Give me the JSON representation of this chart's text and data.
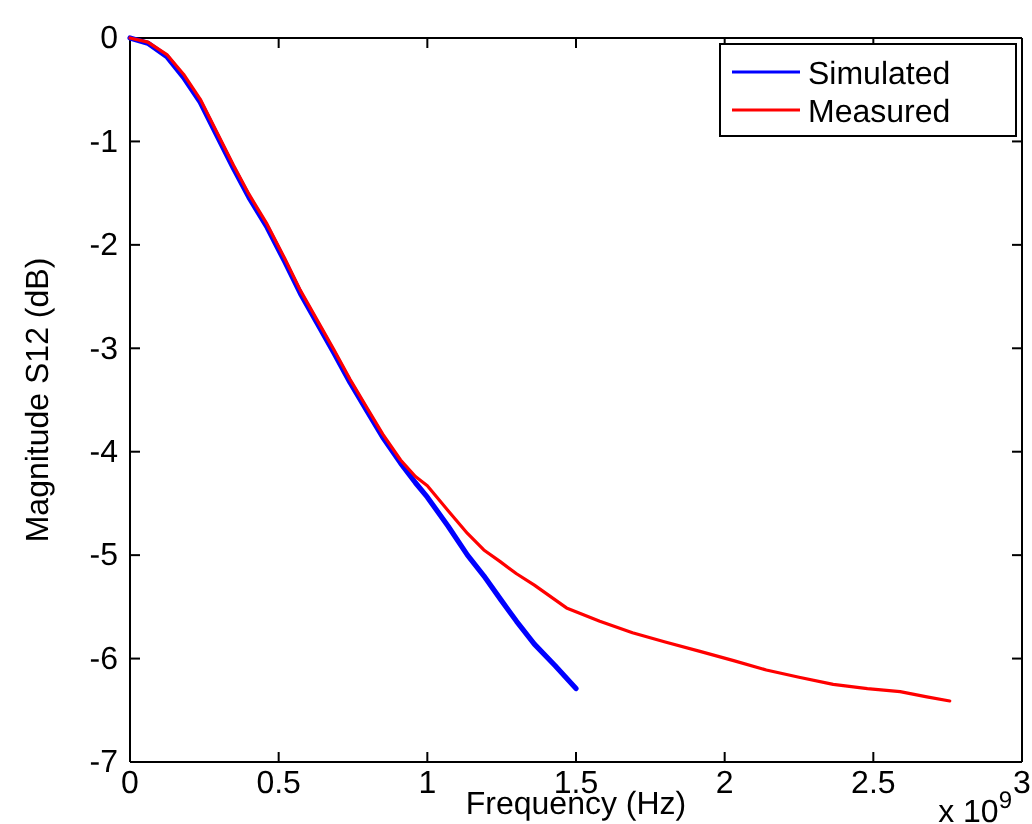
{
  "chart_data": {
    "type": "line",
    "xlabel": "Frequency (Hz)",
    "ylabel": "Magnitude S12 (dB)",
    "xlim": [
      0,
      3
    ],
    "xticks": [
      0,
      0.5,
      1,
      1.5,
      2,
      2.5,
      3
    ],
    "ylim": [
      -7,
      0
    ],
    "yticks": [
      -7,
      -6,
      -5,
      -4,
      -3,
      -2,
      -1,
      0
    ],
    "grid": false,
    "legend": "top right",
    "annotations": [
      "x 10$^{9}$"
    ],
    "series": [
      {
        "name": "Simulated",
        "color": "#0000ff",
        "x": [
          0,
          0.06,
          0.124,
          0.18,
          0.236,
          0.29,
          0.348,
          0.4,
          0.461,
          0.52,
          0.573,
          0.63,
          0.685,
          0.74,
          0.798,
          0.85,
          0.91,
          0.96,
          1.0,
          1.07,
          1.135,
          1.19,
          1.247,
          1.3,
          1.36,
          1.43,
          1.5
        ],
        "values": [
          0,
          -0.05,
          -0.18,
          -0.38,
          -0.62,
          -0.93,
          -1.26,
          -1.54,
          -1.83,
          -2.16,
          -2.47,
          -2.76,
          -3.04,
          -3.33,
          -3.61,
          -3.86,
          -4.11,
          -4.3,
          -4.44,
          -4.72,
          -5.0,
          -5.2,
          -5.43,
          -5.64,
          -5.86,
          -6.07,
          -6.29
        ]
      },
      {
        "name": "Measured",
        "color": "#ff0000",
        "x": [
          0,
          0.06,
          0.124,
          0.18,
          0.236,
          0.29,
          0.348,
          0.4,
          0.461,
          0.52,
          0.573,
          0.63,
          0.685,
          0.74,
          0.798,
          0.85,
          0.91,
          0.96,
          1.0,
          1.07,
          1.135,
          1.19,
          1.244,
          1.3,
          1.36,
          1.468,
          1.58,
          1.69,
          1.8,
          1.917,
          2.03,
          2.14,
          2.25,
          2.365,
          2.48,
          2.59,
          2.68,
          2.757
        ],
        "values": [
          0,
          -0.04,
          -0.16,
          -0.35,
          -0.59,
          -0.9,
          -1.23,
          -1.51,
          -1.8,
          -2.13,
          -2.44,
          -2.73,
          -3.01,
          -3.3,
          -3.58,
          -3.83,
          -4.08,
          -4.24,
          -4.33,
          -4.57,
          -4.79,
          -4.95,
          -5.06,
          -5.18,
          -5.29,
          -5.51,
          -5.64,
          -5.75,
          -5.84,
          -5.93,
          -6.02,
          -6.11,
          -6.18,
          -6.25,
          -6.29,
          -6.32,
          -6.37,
          -6.41
        ]
      }
    ]
  }
}
